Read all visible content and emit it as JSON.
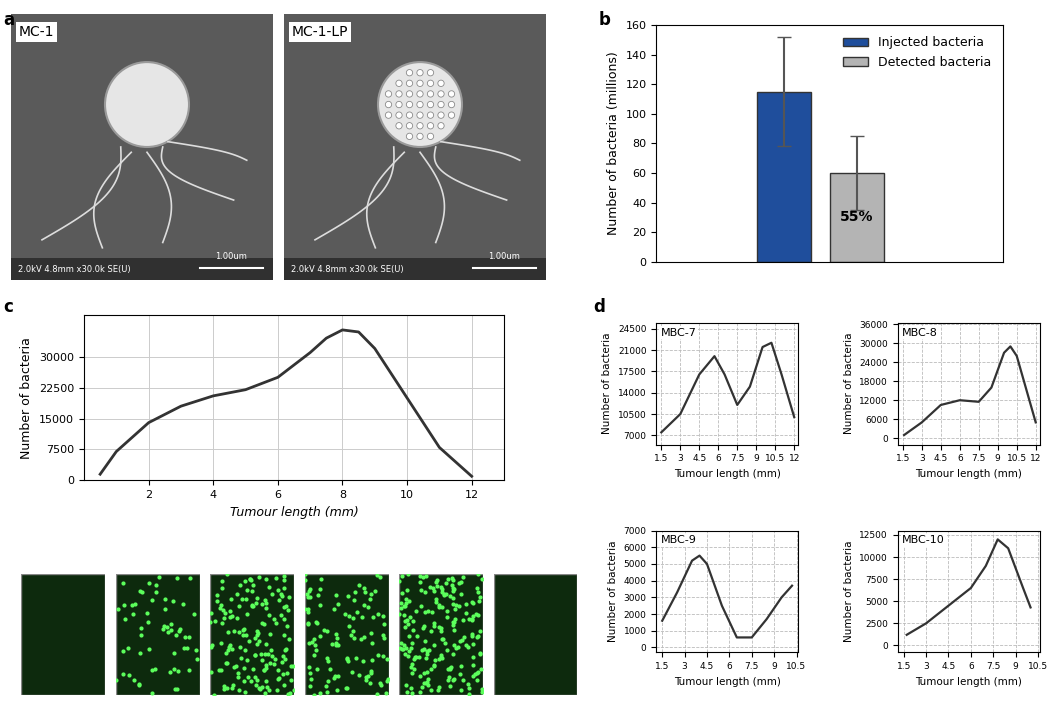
{
  "panel_labels": [
    "a",
    "b",
    "c",
    "d"
  ],
  "images": [
    {
      "label": "MC-1",
      "caption": "2.0kV 4.8mm x30.0k SE(U)",
      "scale_bar": "1.00um"
    },
    {
      "label": "MC-1-LP",
      "caption": "2.0kV 4.8mm x30.0k SE(U)",
      "scale_bar": "1.00um"
    }
  ],
  "chart_data": [
    {
      "type": "bar",
      "ylabel": "Number of bacteria (millions)",
      "categories": [
        null
      ],
      "series": [
        {
          "name": "Injected bacteria",
          "color": "#1f4e9c",
          "values": [
            115
          ],
          "error": [
            37
          ]
        },
        {
          "name": "Detected bacteria",
          "color": "#b4b4b4",
          "values": [
            60
          ],
          "error": [
            25
          ]
        }
      ],
      "annotations": [
        {
          "text": "55%",
          "series": 1
        }
      ],
      "ylim": [
        0,
        160
      ],
      "yticks": [
        0,
        20,
        40,
        60,
        80,
        100,
        120,
        140,
        160
      ],
      "legend": "upper right",
      "tick_labels": "y"
    },
    {
      "type": "line",
      "xlabel": "Tumour length (mm)",
      "ylabel": "Number of bacteria",
      "x": [
        0.5,
        1,
        2,
        3,
        4,
        5,
        6,
        7,
        7.5,
        8,
        8.5,
        9,
        10,
        11,
        12
      ],
      "values": [
        1500,
        7000,
        14000,
        18000,
        20500,
        22000,
        25000,
        31000,
        34500,
        36500,
        36000,
        32000,
        20000,
        8000,
        1000
      ],
      "color": "#333333",
      "xlim": [
        0,
        13
      ],
      "xticks": [
        2,
        4,
        6,
        8,
        10,
        12
      ],
      "ylim": [
        0,
        40000
      ],
      "yticks": [
        0,
        7500,
        15000,
        22500,
        30000
      ],
      "grid": true
    },
    {
      "type": "line",
      "title": "MBC-7",
      "xlabel": "Tumour length (mm)",
      "ylabel": "Number of bacteria",
      "x": [
        1.5,
        3,
        4.5,
        5.7,
        6.5,
        7.5,
        8.5,
        9.5,
        10.2,
        11,
        12
      ],
      "values": [
        7500,
        10500,
        17000,
        20000,
        17000,
        12000,
        15000,
        21500,
        22200,
        17000,
        10000
      ],
      "color": "#333333",
      "xlim": [
        1.1,
        12.3
      ],
      "xticks": [
        1.5,
        3,
        4.5,
        6,
        7.5,
        9,
        10.5,
        12
      ],
      "ylim": [
        5500,
        25500
      ],
      "yticks": [
        7000,
        10500,
        14000,
        17500,
        21000,
        24500
      ],
      "grid": true
    },
    {
      "type": "line",
      "title": "MBC-8",
      "xlabel": "Tumour length (mm)",
      "ylabel": "Number of bacteria",
      "x": [
        1.6,
        3,
        4.5,
        6,
        7.5,
        8.5,
        9.5,
        10,
        10.5,
        11.5,
        12
      ],
      "values": [
        1000,
        5000,
        10500,
        12000,
        11500,
        16000,
        27000,
        29000,
        26000,
        12000,
        5000
      ],
      "color": "#333333",
      "xlim": [
        1.1,
        12.3
      ],
      "xticks": [
        1.5,
        3,
        4.5,
        6,
        7.5,
        9,
        10.5,
        12
      ],
      "ylim": [
        -2000,
        36500
      ],
      "yticks": [
        0,
        6000,
        12000,
        18000,
        24000,
        30000,
        36000
      ],
      "grid": true
    },
    {
      "type": "line",
      "title": "MBC-9",
      "xlabel": "Tumour length (mm)",
      "ylabel": "Number of bacteria",
      "x": [
        1.5,
        2.5,
        3.5,
        4,
        4.5,
        5.5,
        6.5,
        7.5,
        8.5,
        9.5,
        10.2
      ],
      "values": [
        1600,
        3300,
        5200,
        5500,
        5000,
        2500,
        600,
        600,
        1700,
        3000,
        3700
      ],
      "color": "#333333",
      "xlim": [
        1.1,
        10.6
      ],
      "xticks": [
        1.5,
        3,
        4.5,
        6,
        7.5,
        9,
        10.5
      ],
      "ylim": [
        -300,
        7000
      ],
      "yticks": [
        0,
        1000,
        2000,
        3000,
        4000,
        5000,
        6000,
        7000
      ],
      "grid": true
    },
    {
      "type": "line",
      "title": "MBC-10",
      "xlabel": "Tumour length (mm)",
      "ylabel": "Number of bacteria",
      "x": [
        1.7,
        3,
        4.5,
        6,
        7,
        7.8,
        8.5,
        9.5,
        10
      ],
      "values": [
        1200,
        2500,
        4500,
        6500,
        9000,
        12000,
        11000,
        6500,
        4300
      ],
      "color": "#333333",
      "xlim": [
        1.1,
        10.6
      ],
      "xticks": [
        1.5,
        3,
        4.5,
        6,
        7.5,
        9,
        10.5
      ],
      "ylim": [
        -800,
        13000
      ],
      "yticks": [
        0,
        2500,
        5000,
        7500,
        10000,
        12500
      ],
      "grid": true
    }
  ]
}
